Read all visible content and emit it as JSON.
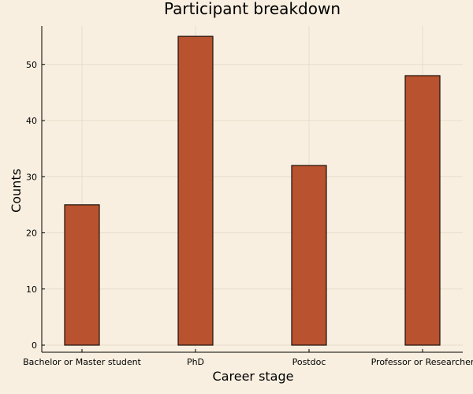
{
  "chart_data": {
    "type": "bar",
    "title": "Participant breakdown",
    "xlabel": "Career stage",
    "ylabel": "Counts",
    "categories": [
      "Bachelor or Master student",
      "PhD",
      "Postdoc",
      "Professor or Researcher"
    ],
    "values": [
      25,
      55,
      32,
      48
    ],
    "ylim": [
      0,
      56
    ],
    "yticks": [
      0,
      10,
      20,
      30,
      40,
      50
    ],
    "grid": true,
    "legend": "none",
    "colors": {
      "background": "#f8efe0",
      "bar_fill": "#b9522e",
      "bar_stroke": "#1a0f0a",
      "grid": "#e6dccb",
      "axis": "#000000"
    }
  }
}
